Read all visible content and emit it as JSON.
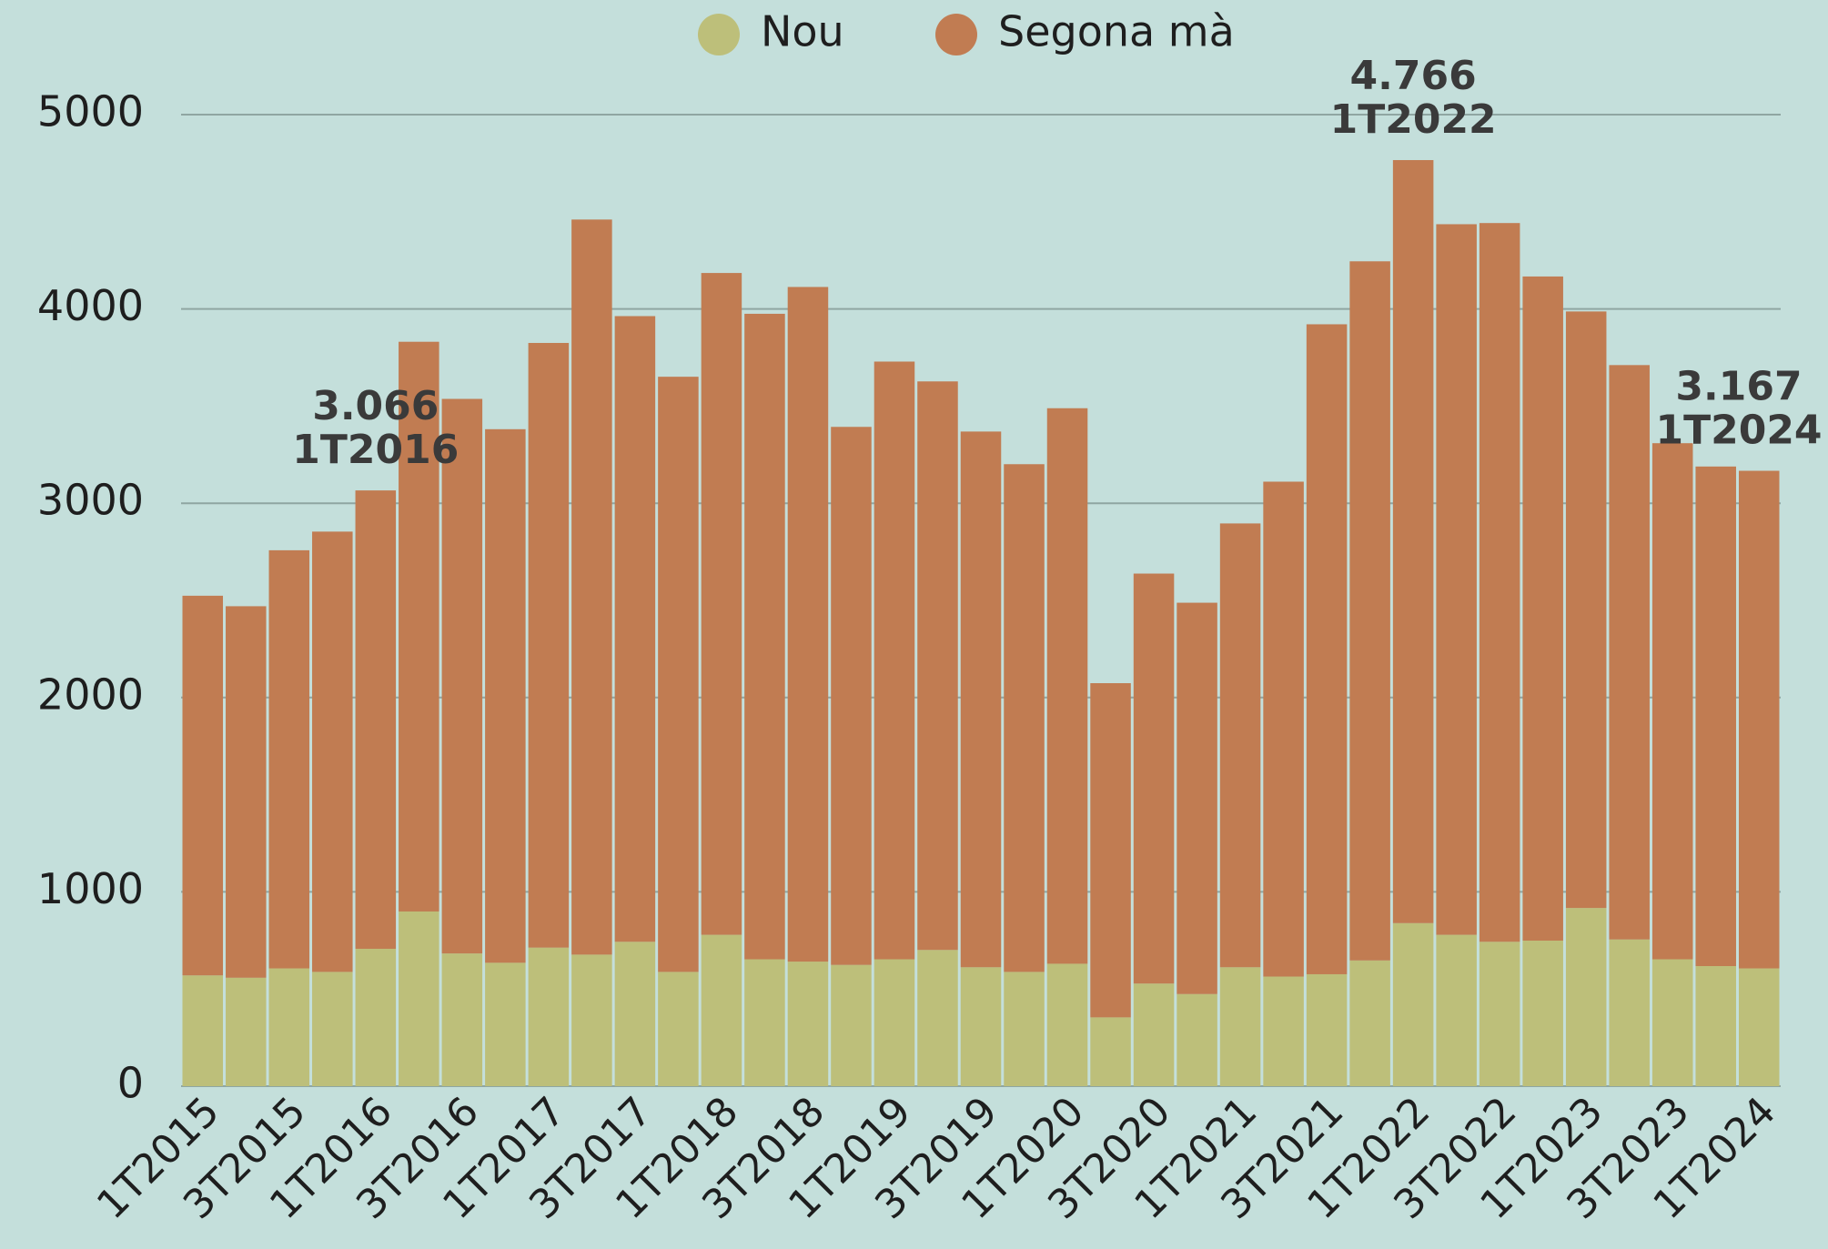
{
  "chart_data": {
    "type": "stacked_bar",
    "categories": [
      "1T2015",
      null,
      "3T2015",
      null,
      "1T2016",
      null,
      "3T2016",
      null,
      "1T2017",
      null,
      "3T2017",
      null,
      "1T2018",
      null,
      "3T2018",
      null,
      "1T2019",
      null,
      "3T2019",
      null,
      "1T2020",
      null,
      "3T2020",
      null,
      "1T2021",
      null,
      "3T2021",
      null,
      "1T2022",
      null,
      "3T2022",
      null,
      "1T2023",
      null,
      "3T2023",
      null,
      "1T2024"
    ],
    "series": [
      {
        "name": "Nou",
        "color": "#bdbf7a",
        "values": [
          570,
          558,
          606,
          588,
          707,
          899,
          683,
          635,
          713,
          677,
          743,
          588,
          779,
          653,
          641,
          624,
          653,
          701,
          612,
          588,
          630,
          354,
          528,
          474,
          612,
          564,
          576,
          647,
          839,
          779,
          743,
          749,
          917,
          755,
          653,
          618,
          606
        ]
      },
      {
        "name": "Segona mà",
        "color": "#c17c52",
        "values": [
          1954,
          1912,
          2152,
          2266,
          2359,
          2932,
          2854,
          2746,
          3112,
          3783,
          3220,
          3063,
          3406,
          3322,
          3472,
          2769,
          3076,
          2926,
          2757,
          2613,
          2859,
          1720,
          2110,
          2014,
          2284,
          2547,
          3345,
          3598,
          3927,
          3657,
          3699,
          3418,
          3070,
          2956,
          2656,
          2571,
          2561
        ]
      }
    ],
    "annotations": [
      {
        "value_label": "3.066",
        "category": "1T2016"
      },
      {
        "value_label": "4.766",
        "category": "1T2022"
      },
      {
        "value_label": "3.167",
        "category": "1T2024"
      }
    ],
    "ylim": [
      0,
      5000
    ],
    "yticks": [
      0,
      1000,
      2000,
      3000,
      4000,
      5000
    ],
    "grid": true
  }
}
